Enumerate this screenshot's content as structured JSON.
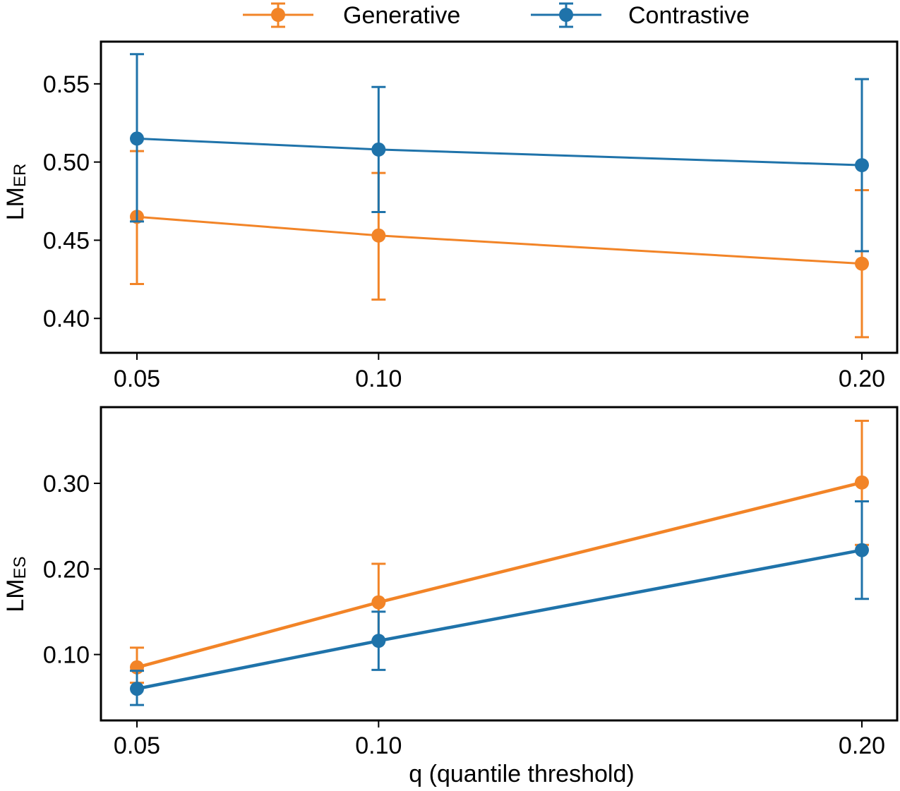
{
  "legend": {
    "placement": "top-center",
    "entries": [
      {
        "name": "Generative",
        "color": "#f28427"
      },
      {
        "name": "Contrastive",
        "color": "#1f73aa"
      }
    ]
  },
  "chart_data": [
    {
      "type": "line",
      "error_bars": true,
      "x": [
        0.05,
        0.1,
        0.2
      ],
      "x_tick_labels": [
        "0.05",
        "0.10",
        "0.20"
      ],
      "ylabel": "LM",
      "ylabel_subscript": "ER",
      "xlabel": "",
      "ylim": [
        0.378,
        0.577
      ],
      "y_ticks": [
        0.4,
        0.45,
        0.5,
        0.55
      ],
      "y_tick_labels": [
        "0.40",
        "0.45",
        "0.50",
        "0.55"
      ],
      "grid": false,
      "series": [
        {
          "name": "Generative",
          "values": [
            0.465,
            0.453,
            0.435
          ],
          "lower": [
            0.422,
            0.412,
            0.388
          ],
          "upper": [
            0.507,
            0.493,
            0.482
          ]
        },
        {
          "name": "Contrastive",
          "values": [
            0.515,
            0.508,
            0.498
          ],
          "lower": [
            0.462,
            0.468,
            0.443
          ],
          "upper": [
            0.569,
            0.548,
            0.553
          ]
        }
      ]
    },
    {
      "type": "line",
      "error_bars": true,
      "x": [
        0.05,
        0.1,
        0.2
      ],
      "x_tick_labels": [
        "0.05",
        "0.10",
        "0.20"
      ],
      "ylabel": "LM",
      "ylabel_subscript": "ES",
      "xlabel": "q (quantile threshold)",
      "ylim": [
        0.023,
        0.389
      ],
      "y_ticks": [
        0.1,
        0.2,
        0.3
      ],
      "y_tick_labels": [
        "0.10",
        "0.20",
        "0.30"
      ],
      "grid": false,
      "series": [
        {
          "name": "Generative",
          "values": [
            0.085,
            0.161,
            0.301
          ],
          "lower": [
            0.067,
            0.117,
            0.228
          ],
          "upper": [
            0.108,
            0.206,
            0.373
          ]
        },
        {
          "name": "Contrastive",
          "values": [
            0.06,
            0.116,
            0.222
          ],
          "lower": [
            0.041,
            0.082,
            0.165
          ],
          "upper": [
            0.081,
            0.15,
            0.279
          ]
        }
      ]
    }
  ]
}
